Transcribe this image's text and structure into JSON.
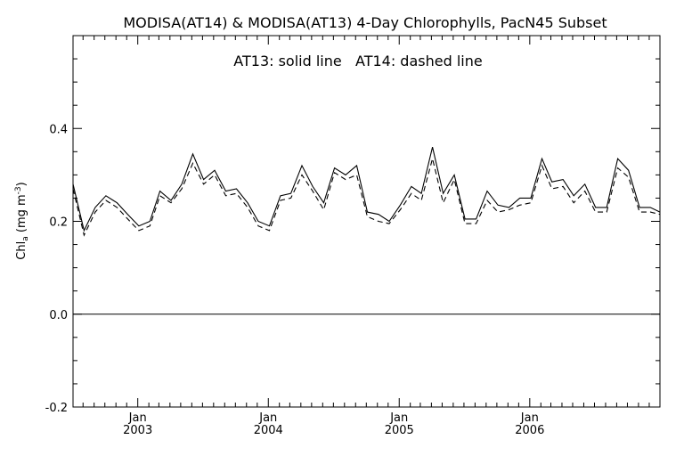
{
  "chart_data": {
    "type": "line",
    "title": "MODISA(AT14) & MODISA(AT13) 4-Day Chlorophylls, PacN45 Subset",
    "annotation": "AT13: solid line   AT14: dashed line",
    "ylabel": {
      "main": "Chl",
      "sub": "a",
      "units_open": " (mg m",
      "units_exp": "-3",
      "units_close": ")"
    },
    "ylim": [
      -0.2,
      0.6
    ],
    "xlim": [
      "2002-07-04",
      "2006-12-31"
    ],
    "y_ticks": [
      "-0.2",
      "0.0",
      "0.2",
      "0.4"
    ],
    "y_tick_values": [
      -0.2,
      0.0,
      0.2,
      0.4
    ],
    "x_ticks": [
      {
        "date": "2003-01-01",
        "month": "Jan",
        "year": "2003"
      },
      {
        "date": "2004-01-01",
        "month": "Jan",
        "year": "2004"
      },
      {
        "date": "2005-01-01",
        "month": "Jan",
        "year": "2005"
      },
      {
        "date": "2006-01-01",
        "month": "Jan",
        "year": "2006"
      }
    ],
    "reference_line": 0.0,
    "grid": false,
    "legend": "top-center",
    "series": [
      {
        "style": "solid",
        "x": [
          "2002-07-04",
          "2002-08-04",
          "2002-09-04",
          "2002-10-04",
          "2002-11-04",
          "2002-12-04",
          "2003-01-04",
          "2003-02-04",
          "2003-03-04",
          "2003-04-04",
          "2003-05-04",
          "2003-06-04",
          "2003-07-04",
          "2003-08-04",
          "2003-09-04",
          "2003-10-04",
          "2003-11-04",
          "2003-12-04",
          "2004-01-04",
          "2004-02-04",
          "2004-03-04",
          "2004-04-04",
          "2004-05-04",
          "2004-06-04",
          "2004-07-04",
          "2004-08-04",
          "2004-09-04",
          "2004-10-04",
          "2004-11-04",
          "2004-12-04",
          "2005-01-04",
          "2005-02-04",
          "2005-03-04",
          "2005-04-04",
          "2005-05-04",
          "2005-06-04",
          "2005-07-04",
          "2005-08-04",
          "2005-09-04",
          "2005-10-04",
          "2005-11-04",
          "2005-12-04",
          "2006-01-04",
          "2006-02-04",
          "2006-03-04",
          "2006-04-04",
          "2006-05-04",
          "2006-06-04",
          "2006-07-04",
          "2006-08-04",
          "2006-09-04",
          "2006-10-04",
          "2006-11-04",
          "2006-12-04",
          "2006-12-31"
        ],
        "values": [
          0.28,
          0.18,
          0.23,
          0.255,
          0.24,
          0.215,
          0.19,
          0.2,
          0.265,
          0.245,
          0.28,
          0.345,
          0.29,
          0.31,
          0.265,
          0.27,
          0.24,
          0.2,
          0.19,
          0.255,
          0.26,
          0.32,
          0.275,
          0.24,
          0.315,
          0.3,
          0.32,
          0.22,
          0.215,
          0.2,
          0.235,
          0.275,
          0.26,
          0.36,
          0.26,
          0.3,
          0.205,
          0.205,
          0.265,
          0.235,
          0.23,
          0.25,
          0.25,
          0.335,
          0.285,
          0.29,
          0.255,
          0.28,
          0.23,
          0.23,
          0.335,
          0.31,
          0.23,
          0.23,
          0.22
        ]
      },
      {
        "style": "dashed",
        "x": [
          "2002-07-04",
          "2002-08-04",
          "2002-09-04",
          "2002-10-04",
          "2002-11-04",
          "2002-12-04",
          "2003-01-04",
          "2003-02-04",
          "2003-03-04",
          "2003-04-04",
          "2003-05-04",
          "2003-06-04",
          "2003-07-04",
          "2003-08-04",
          "2003-09-04",
          "2003-10-04",
          "2003-11-04",
          "2003-12-04",
          "2004-01-04",
          "2004-02-04",
          "2004-03-04",
          "2004-04-04",
          "2004-05-04",
          "2004-06-04",
          "2004-07-04",
          "2004-08-04",
          "2004-09-04",
          "2004-10-04",
          "2004-11-04",
          "2004-12-04",
          "2005-01-04",
          "2005-02-04",
          "2005-03-04",
          "2005-04-04",
          "2005-05-04",
          "2005-06-04",
          "2005-07-04",
          "2005-08-04",
          "2005-09-04",
          "2005-10-04",
          "2005-11-04",
          "2005-12-04",
          "2006-01-04",
          "2006-02-04",
          "2006-03-04",
          "2006-04-04",
          "2006-05-04",
          "2006-06-04",
          "2006-07-04",
          "2006-08-04",
          "2006-09-04",
          "2006-10-04",
          "2006-11-04",
          "2006-12-04",
          "2006-12-31"
        ],
        "values": [
          0.27,
          0.17,
          0.22,
          0.245,
          0.23,
          0.205,
          0.18,
          0.19,
          0.255,
          0.24,
          0.27,
          0.325,
          0.28,
          0.3,
          0.255,
          0.26,
          0.23,
          0.19,
          0.18,
          0.245,
          0.25,
          0.3,
          0.265,
          0.225,
          0.305,
          0.29,
          0.3,
          0.21,
          0.2,
          0.195,
          0.225,
          0.26,
          0.245,
          0.335,
          0.24,
          0.29,
          0.195,
          0.195,
          0.245,
          0.22,
          0.225,
          0.235,
          0.24,
          0.32,
          0.27,
          0.275,
          0.24,
          0.265,
          0.22,
          0.22,
          0.315,
          0.295,
          0.22,
          0.22,
          0.215
        ]
      }
    ]
  }
}
